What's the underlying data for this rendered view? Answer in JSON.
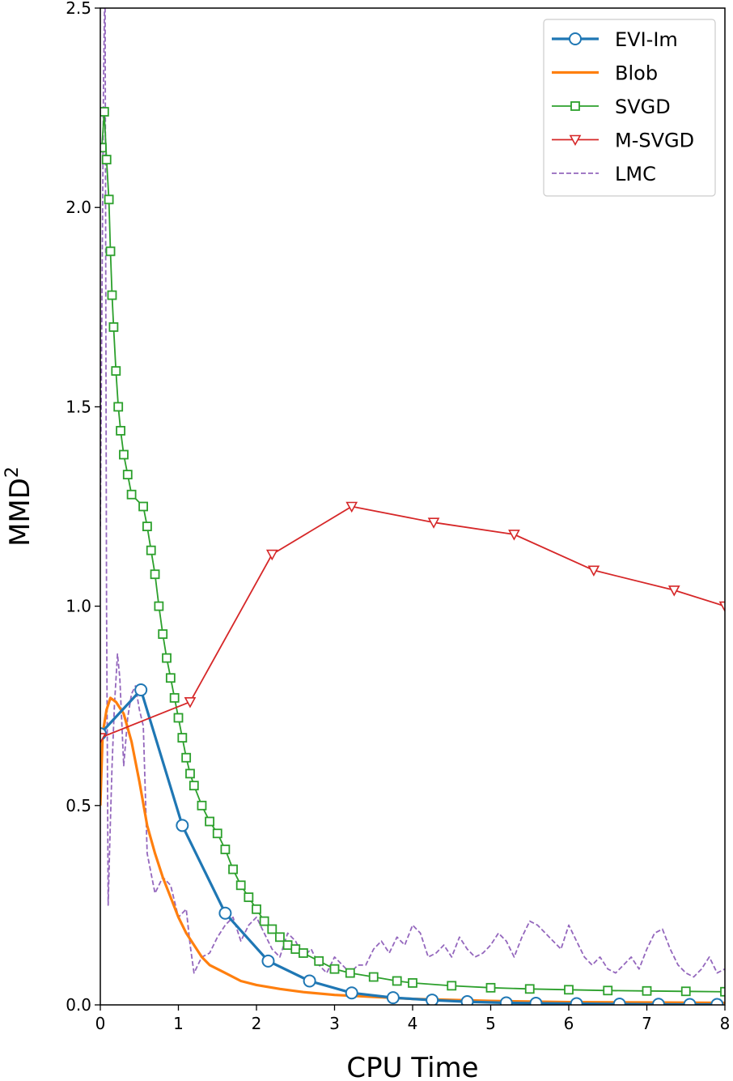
{
  "chart_data": {
    "type": "line",
    "xlabel": "CPU Time",
    "ylabel": "MMD",
    "ylabel_superscript": "2",
    "xlim": [
      0,
      8
    ],
    "ylim": [
      0,
      2.5
    ],
    "xticks": [
      "0",
      "1",
      "2",
      "3",
      "4",
      "5",
      "6",
      "7",
      "8"
    ],
    "yticks": [
      "0.0",
      "0.5",
      "1.0",
      "1.5",
      "2.0",
      "2.5"
    ],
    "grid": false,
    "legend_position": "top-right",
    "series": [
      {
        "name": "EVI-Im",
        "color": "#1f77b4",
        "marker": "circle",
        "style": "solid-thick",
        "x": [
          0.0,
          0.52,
          1.05,
          1.6,
          2.15,
          2.68,
          3.22,
          3.75,
          4.25,
          4.7,
          5.2,
          5.58,
          6.1,
          6.65,
          7.15,
          7.55,
          7.9
        ],
        "y": [
          0.68,
          0.79,
          0.45,
          0.23,
          0.11,
          0.06,
          0.03,
          0.018,
          0.012,
          0.008,
          0.005,
          0.004,
          0.003,
          0.002,
          0.0015,
          0.001,
          0.001
        ]
      },
      {
        "name": "Blob",
        "color": "#ff7f0e",
        "marker": "none",
        "style": "solid-thick",
        "x": [
          0.0,
          0.03,
          0.08,
          0.13,
          0.2,
          0.3,
          0.4,
          0.5,
          0.6,
          0.7,
          0.8,
          0.9,
          1.0,
          1.1,
          1.2,
          1.3,
          1.4,
          1.6,
          1.8,
          2.0,
          2.3,
          2.6,
          3.0,
          3.5,
          4.0,
          5.0,
          6.0,
          7.0,
          8.0
        ],
        "y": [
          0.5,
          0.68,
          0.74,
          0.77,
          0.76,
          0.73,
          0.66,
          0.56,
          0.45,
          0.38,
          0.32,
          0.27,
          0.22,
          0.18,
          0.15,
          0.12,
          0.1,
          0.08,
          0.06,
          0.05,
          0.04,
          0.032,
          0.025,
          0.02,
          0.015,
          0.01,
          0.007,
          0.006,
          0.005
        ]
      },
      {
        "name": "SVGD",
        "color": "#2ca02c",
        "marker": "square",
        "style": "solid-thin",
        "x": [
          0.02,
          0.05,
          0.08,
          0.11,
          0.13,
          0.15,
          0.17,
          0.2,
          0.23,
          0.26,
          0.3,
          0.35,
          0.4,
          0.55,
          0.6,
          0.65,
          0.7,
          0.75,
          0.8,
          0.85,
          0.9,
          0.95,
          1.0,
          1.05,
          1.1,
          1.15,
          1.2,
          1.3,
          1.4,
          1.5,
          1.6,
          1.7,
          1.8,
          1.9,
          2.0,
          2.1,
          2.2,
          2.3,
          2.4,
          2.5,
          2.6,
          2.8,
          3.0,
          3.2,
          3.5,
          3.8,
          4.0,
          4.5,
          5.0,
          5.5,
          6.0,
          6.5,
          7.0,
          7.5,
          8.0
        ],
        "y": [
          2.15,
          2.24,
          2.12,
          2.02,
          1.89,
          1.78,
          1.7,
          1.59,
          1.5,
          1.44,
          1.38,
          1.33,
          1.28,
          1.25,
          1.2,
          1.14,
          1.08,
          1.0,
          0.93,
          0.87,
          0.82,
          0.77,
          0.72,
          0.67,
          0.62,
          0.58,
          0.55,
          0.5,
          0.46,
          0.43,
          0.39,
          0.34,
          0.3,
          0.27,
          0.24,
          0.21,
          0.19,
          0.17,
          0.15,
          0.14,
          0.13,
          0.11,
          0.09,
          0.08,
          0.07,
          0.06,
          0.055,
          0.048,
          0.043,
          0.04,
          0.038,
          0.036,
          0.035,
          0.034,
          0.033
        ]
      },
      {
        "name": "M-SVGD",
        "color": "#d62728",
        "marker": "triangle-down",
        "style": "solid-thin",
        "x": [
          0.0,
          1.15,
          2.2,
          3.22,
          4.27,
          5.3,
          6.32,
          7.35,
          8.0
        ],
        "y": [
          0.67,
          0.76,
          1.13,
          1.25,
          1.21,
          1.18,
          1.09,
          1.04,
          1.0
        ]
      },
      {
        "name": "LMC",
        "color": "#9467bd",
        "marker": "none",
        "style": "dashed",
        "x": [
          0.0,
          0.04,
          0.06,
          0.08,
          0.1,
          0.12,
          0.15,
          0.18,
          0.22,
          0.25,
          0.3,
          0.35,
          0.4,
          0.45,
          0.5,
          0.55,
          0.6,
          0.65,
          0.7,
          0.8,
          0.9,
          1.0,
          1.1,
          1.15,
          1.2,
          1.3,
          1.4,
          1.5,
          1.6,
          1.7,
          1.8,
          1.9,
          2.0,
          2.1,
          2.2,
          2.3,
          2.4,
          2.5,
          2.6,
          2.7,
          2.8,
          2.9,
          3.0,
          3.1,
          3.2,
          3.3,
          3.4,
          3.5,
          3.6,
          3.7,
          3.8,
          3.9,
          4.0,
          4.1,
          4.2,
          4.3,
          4.4,
          4.5,
          4.6,
          4.7,
          4.8,
          4.9,
          5.0,
          5.1,
          5.2,
          5.3,
          5.4,
          5.5,
          5.6,
          5.7,
          5.8,
          5.9,
          6.0,
          6.1,
          6.2,
          6.3,
          6.4,
          6.5,
          6.6,
          6.7,
          6.8,
          6.9,
          7.0,
          7.1,
          7.2,
          7.3,
          7.4,
          7.5,
          7.6,
          7.7,
          7.8,
          7.9,
          8.0
        ],
        "y": [
          1.2,
          2.3,
          2.6,
          1.0,
          0.25,
          0.4,
          0.6,
          0.75,
          0.88,
          0.82,
          0.6,
          0.72,
          0.78,
          0.8,
          0.74,
          0.7,
          0.38,
          0.33,
          0.28,
          0.32,
          0.3,
          0.22,
          0.24,
          0.15,
          0.08,
          0.12,
          0.13,
          0.17,
          0.2,
          0.22,
          0.16,
          0.2,
          0.22,
          0.18,
          0.14,
          0.12,
          0.18,
          0.16,
          0.12,
          0.14,
          0.1,
          0.08,
          0.12,
          0.1,
          0.08,
          0.1,
          0.1,
          0.14,
          0.16,
          0.13,
          0.17,
          0.15,
          0.2,
          0.18,
          0.12,
          0.13,
          0.15,
          0.12,
          0.17,
          0.14,
          0.12,
          0.13,
          0.15,
          0.18,
          0.16,
          0.12,
          0.17,
          0.21,
          0.2,
          0.18,
          0.16,
          0.14,
          0.2,
          0.16,
          0.12,
          0.1,
          0.12,
          0.09,
          0.08,
          0.1,
          0.12,
          0.09,
          0.14,
          0.18,
          0.19,
          0.14,
          0.1,
          0.08,
          0.07,
          0.09,
          0.12,
          0.08,
          0.09
        ]
      }
    ]
  }
}
